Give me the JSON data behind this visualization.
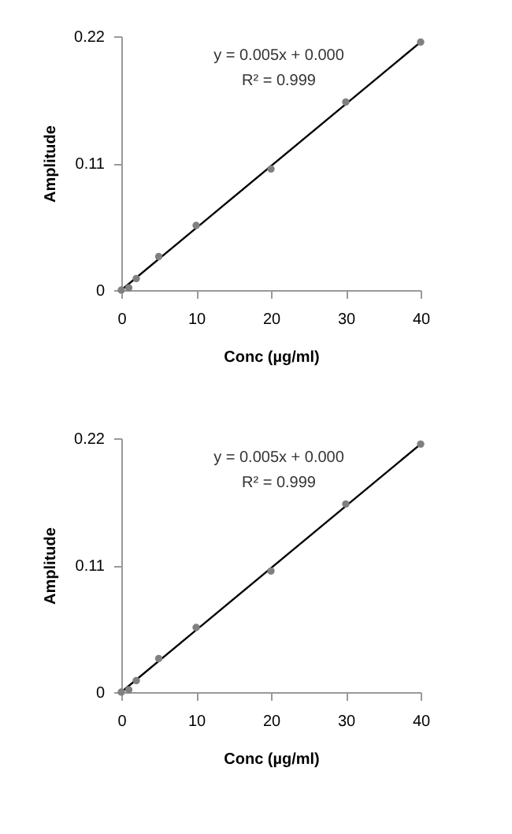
{
  "chart_data": [
    {
      "type": "scatter",
      "xlabel": "Conc (µg/ml)",
      "ylabel": "Amplitude",
      "xlim": [
        0,
        40
      ],
      "ylim": [
        0,
        0.22
      ],
      "xticks": [
        0,
        10,
        20,
        30,
        40
      ],
      "yticks": [
        0,
        0.11,
        0.22
      ],
      "grid": false,
      "annotations": [
        "y = 0.005x + 0.000",
        "R² = 0.999"
      ],
      "series": [
        {
          "marker": "circle",
          "color": "#808080",
          "x": [
            0,
            1,
            2,
            5,
            10,
            20,
            30,
            40
          ],
          "values": [
            0,
            0.002,
            0.01,
            0.029,
            0.056,
            0.105,
            0.163,
            0.215
          ]
        },
        {
          "type": "line",
          "color": "#000000",
          "x": [
            0,
            40
          ],
          "values": [
            0,
            0.215
          ]
        }
      ]
    },
    {
      "type": "scatter",
      "xlabel": "Conc (µg/ml)",
      "ylabel": "Amplitude",
      "xlim": [
        0,
        40
      ],
      "ylim": [
        0,
        0.22
      ],
      "xticks": [
        0,
        10,
        20,
        30,
        40
      ],
      "yticks": [
        0,
        0.11,
        0.22
      ],
      "grid": false,
      "annotations": [
        "y = 0.005x + 0.000",
        "R² = 0.999"
      ],
      "series": [
        {
          "marker": "circle",
          "color": "#808080",
          "x": [
            0,
            1,
            2,
            5,
            10,
            20,
            30,
            40
          ],
          "values": [
            0,
            0.002,
            0.01,
            0.029,
            0.056,
            0.105,
            0.163,
            0.215
          ]
        },
        {
          "type": "line",
          "color": "#000000",
          "x": [
            0,
            40
          ],
          "values": [
            0,
            0.215
          ]
        }
      ]
    }
  ]
}
